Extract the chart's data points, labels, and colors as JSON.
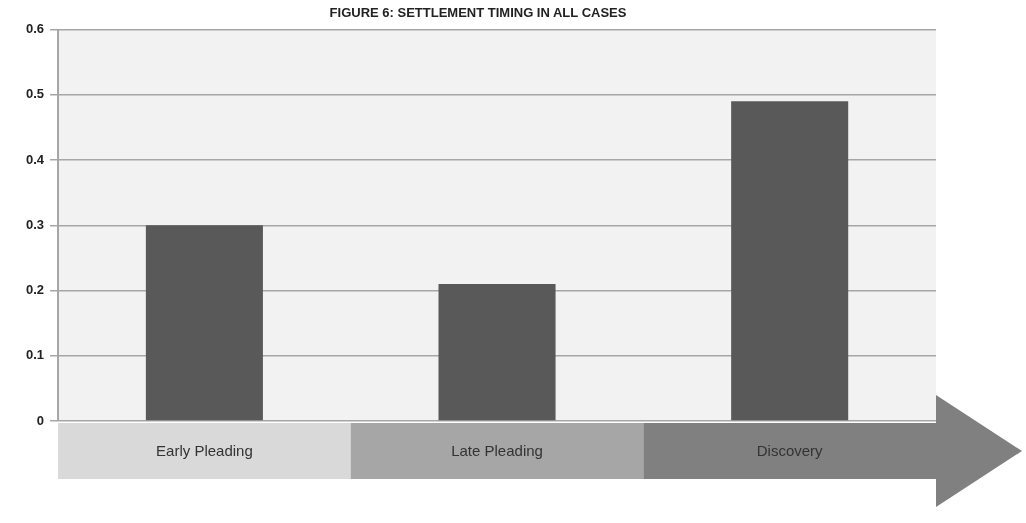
{
  "chart_data": {
    "type": "bar",
    "title": "FIGURE 6: SETTLEMENT TIMING IN ALL CASES",
    "categories": [
      "Early Pleading",
      "Late Pleading",
      "Discovery"
    ],
    "values": [
      0.3,
      0.21,
      0.49
    ],
    "color": "#595959",
    "ylim": [
      0,
      0.6
    ],
    "yticks": [
      0,
      0.1,
      0.2,
      0.3,
      0.4,
      0.5,
      0.6
    ],
    "grid": "y"
  }
}
